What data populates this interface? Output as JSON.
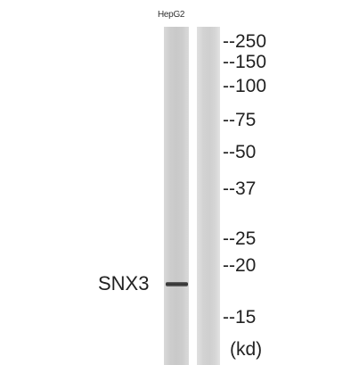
{
  "sample_label": "HepG2",
  "protein_label": "SNX3",
  "markers": [
    "--250",
    "--150",
    "--100",
    "--75",
    "--50",
    "--37",
    "--25",
    "--20",
    "--15"
  ],
  "unit_label": "(kd)"
}
